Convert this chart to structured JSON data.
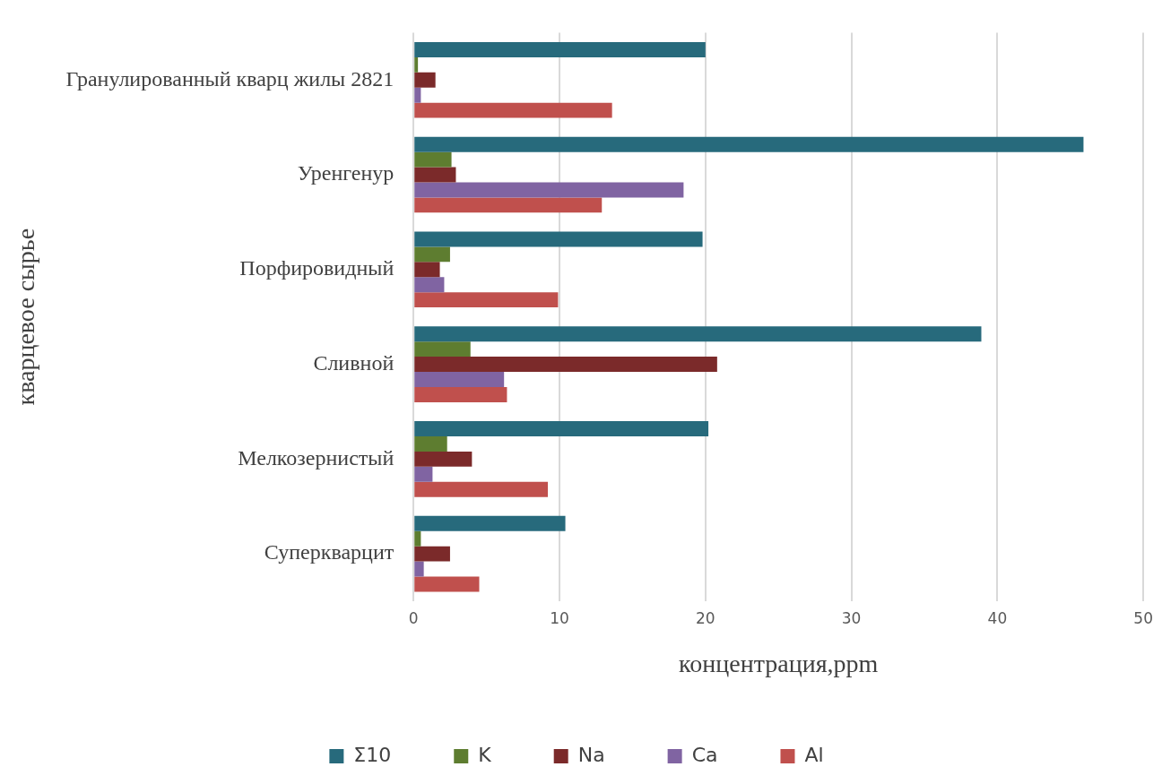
{
  "chart_data": {
    "type": "bar",
    "orientation": "horizontal",
    "categories": [
      "Гранулированный кварц жилы 2821",
      "Уренгенур",
      "Порфировидный",
      "Сливной",
      "Мелкозернистый",
      "Суперкварцит"
    ],
    "series": [
      {
        "name": "Σ10",
        "color": "#276a7c",
        "values": [
          20.0,
          45.9,
          19.8,
          38.9,
          20.2,
          10.4
        ]
      },
      {
        "name": "K",
        "color": "#5e7d30",
        "values": [
          0.3,
          2.6,
          2.5,
          3.9,
          2.3,
          0.5
        ]
      },
      {
        "name": "Na",
        "color": "#7b2a2a",
        "values": [
          1.5,
          2.9,
          1.8,
          20.8,
          4.0,
          2.5
        ]
      },
      {
        "name": "Ca",
        "color": "#8064a2",
        "values": [
          0.5,
          18.5,
          2.1,
          6.2,
          1.3,
          0.7
        ]
      },
      {
        "name": "Al",
        "color": "#c0504d",
        "values": [
          13.6,
          12.9,
          9.9,
          6.4,
          9.2,
          4.5
        ]
      }
    ],
    "xlabel": "концентрация,ppm",
    "ylabel": "кварцевое сырье",
    "xlim": [
      0,
      50
    ],
    "xticks": [
      0,
      10,
      20,
      30,
      40,
      50
    ],
    "grid": "x",
    "legend": "bottom"
  }
}
